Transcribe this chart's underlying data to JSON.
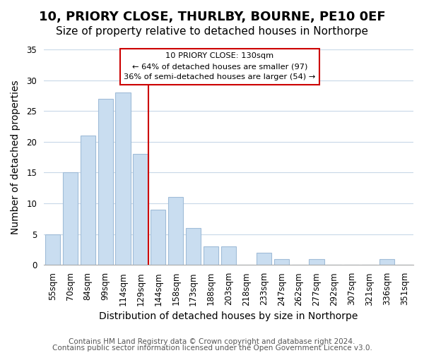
{
  "title": "10, PRIORY CLOSE, THURLBY, BOURNE, PE10 0EF",
  "subtitle": "Size of property relative to detached houses in Northorpe",
  "xlabel": "Distribution of detached houses by size in Northorpe",
  "ylabel": "Number of detached properties",
  "bar_labels": [
    "55sqm",
    "70sqm",
    "84sqm",
    "99sqm",
    "114sqm",
    "129sqm",
    "144sqm",
    "158sqm",
    "173sqm",
    "188sqm",
    "203sqm",
    "218sqm",
    "233sqm",
    "247sqm",
    "262sqm",
    "277sqm",
    "292sqm",
    "307sqm",
    "321sqm",
    "336sqm",
    "351sqm"
  ],
  "bar_values": [
    5,
    15,
    21,
    27,
    28,
    18,
    9,
    11,
    6,
    3,
    3,
    0,
    2,
    1,
    0,
    1,
    0,
    0,
    0,
    1,
    0
  ],
  "bar_color": "#c9ddf0",
  "bar_edge_color": "#a0bcd8",
  "vline_color": "#cc0000",
  "annotation_title": "10 PRIORY CLOSE: 130sqm",
  "annotation_line1": "← 64% of detached houses are smaller (97)",
  "annotation_line2": "36% of semi-detached houses are larger (54) →",
  "annotation_box_color": "#ffffff",
  "annotation_box_edge": "#cc0000",
  "ylim": [
    0,
    35
  ],
  "yticks": [
    0,
    5,
    10,
    15,
    20,
    25,
    30,
    35
  ],
  "footer1": "Contains HM Land Registry data © Crown copyright and database right 2024.",
  "footer2": "Contains public sector information licensed under the Open Government Licence v3.0.",
  "background_color": "#ffffff",
  "grid_color": "#c8d8e8",
  "title_fontsize": 13,
  "subtitle_fontsize": 11,
  "axis_label_fontsize": 10,
  "tick_fontsize": 8.5,
  "footer_fontsize": 7.5
}
